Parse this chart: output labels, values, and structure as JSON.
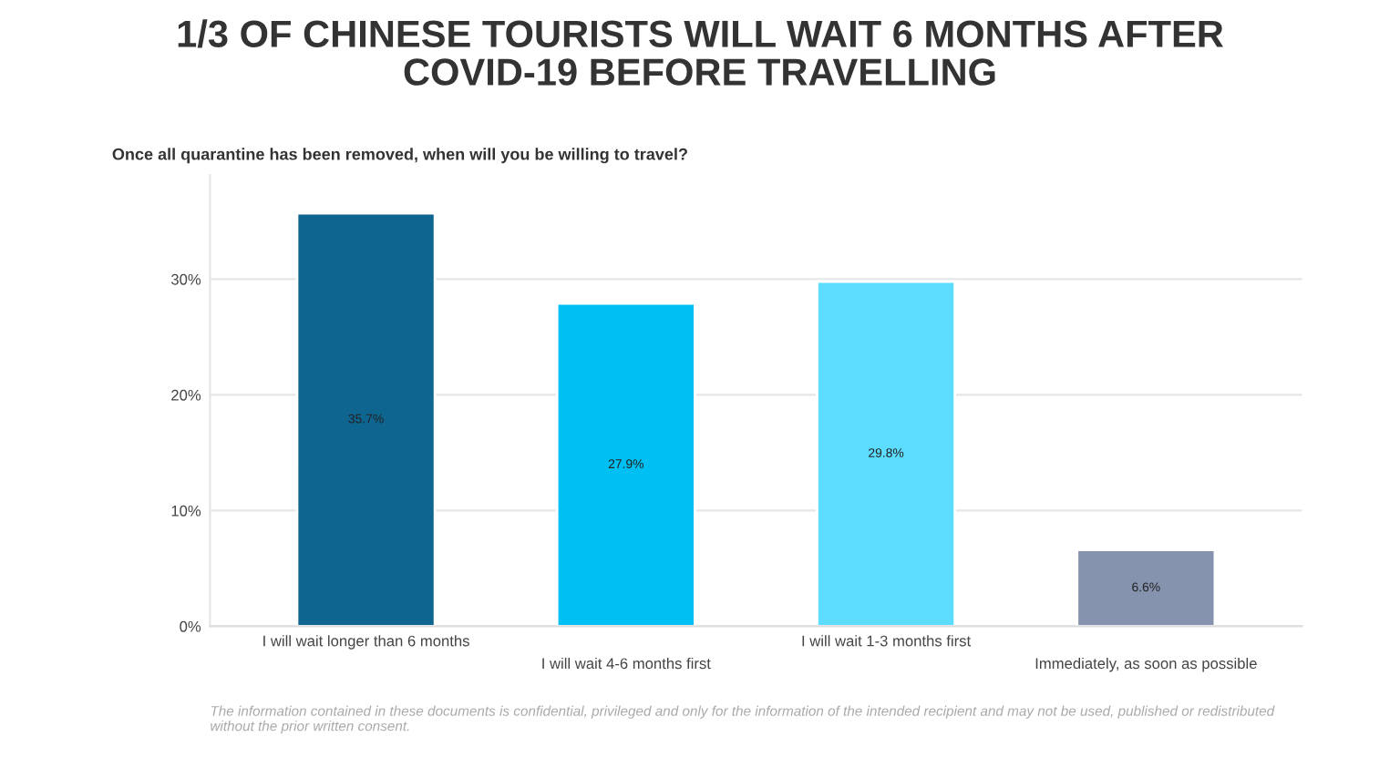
{
  "chart_data": {
    "type": "bar",
    "title": "1/3 OF CHINESE TOURISTS WILL WAIT 6 MONTHS AFTER\nCOVID-19 BEFORE TRAVELLING",
    "subtitle": "Once all quarantine has been removed, when will you be willing to travel?",
    "categories": [
      "I will wait longer than 6 months",
      "I will wait 4-6 months first",
      "I will wait 1-3 months first",
      "Immediately, as soon as possible"
    ],
    "values": [
      35.7,
      27.9,
      29.8,
      6.6
    ],
    "colors": [
      "#0e6690",
      "#00bff3",
      "#5cdcff",
      "#8593ae"
    ],
    "value_labels": [
      "35.7%",
      "27.9%",
      "29.8%",
      "6.6%"
    ],
    "ylim": [
      0,
      39
    ],
    "yticks": [
      {
        "value": 0,
        "label": "0%"
      },
      {
        "value": 10,
        "label": "10%"
      },
      {
        "value": 20,
        "label": "20%"
      },
      {
        "value": 30,
        "label": "30%"
      }
    ],
    "grid": "y",
    "annotations": [
      "The information contained in these documents is confidential, privileged and only for the information of the intended recipient and may not be used, published or redistributed\nwithout the prior written consent."
    ]
  }
}
